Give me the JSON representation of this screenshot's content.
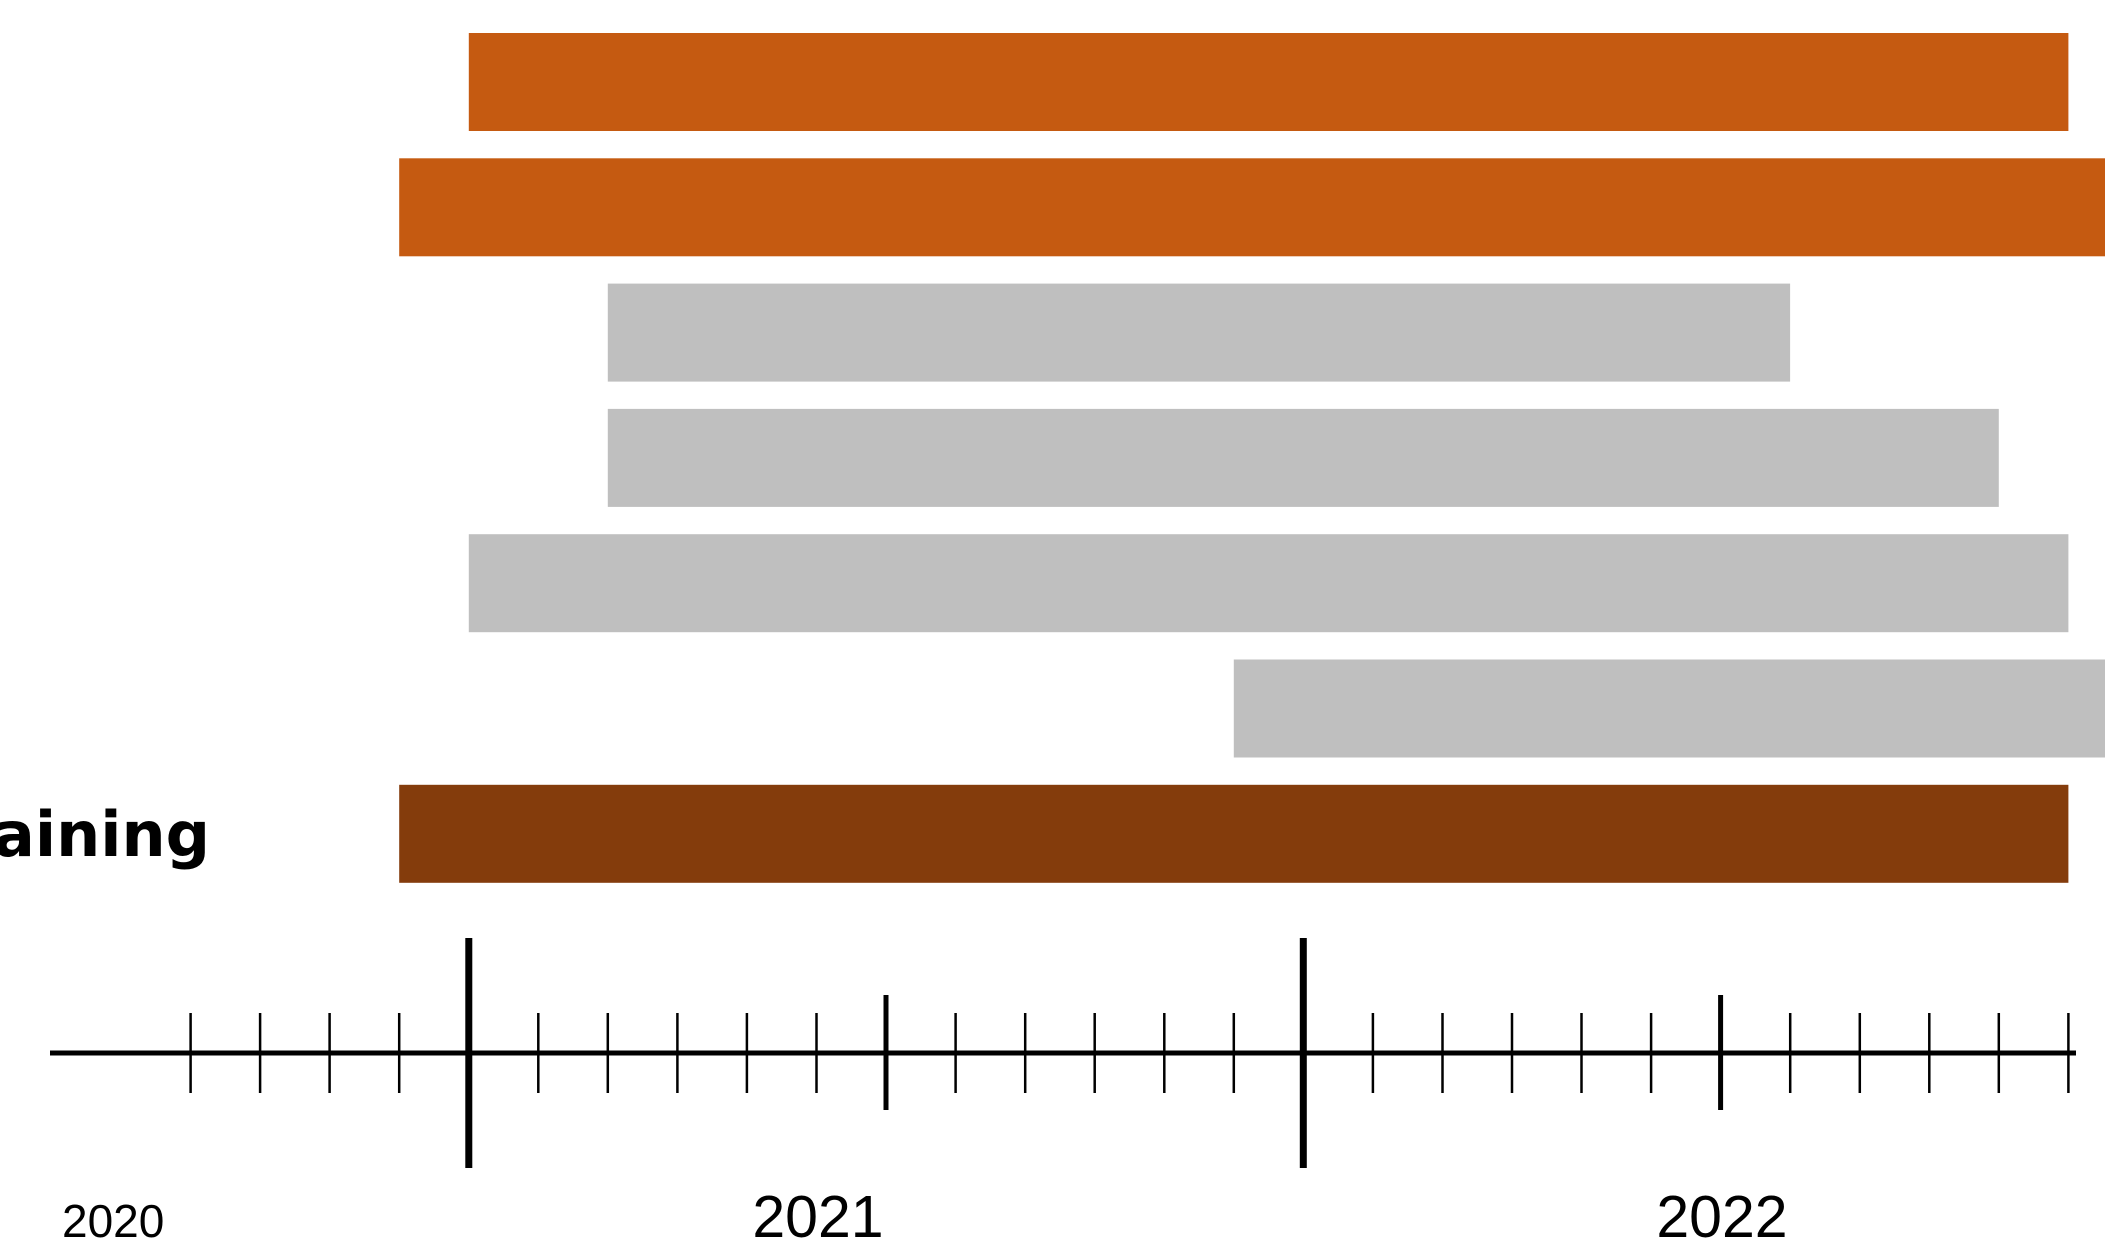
{
  "chart_data": {
    "type": "gantt",
    "colors": {
      "highlight": "#C55A11",
      "neutral": "#BFBFBF",
      "training": "#843C0C",
      "axis": "#000000"
    },
    "row_labels": [
      "",
      "",
      "",
      "",
      "",
      "",
      "raining"
    ],
    "tasks": [
      {
        "label": "",
        "start": "2020-07-01",
        "end": "2022-06-01",
        "color": "highlight"
      },
      {
        "label": "",
        "start": "2020-06-01",
        "end": "2022-07-01",
        "color": "highlight"
      },
      {
        "label": "",
        "start": "2020-09-01",
        "end": "2022-02-01",
        "color": "neutral"
      },
      {
        "label": "",
        "start": "2020-09-01",
        "end": "2022-05-01",
        "color": "neutral"
      },
      {
        "label": "",
        "start": "2020-07-01",
        "end": "2022-06-01",
        "color": "neutral"
      },
      {
        "label": "",
        "start": "2021-06-01",
        "end": "2022-07-01",
        "color": "neutral"
      },
      {
        "label": "raining",
        "start": "2020-06-01",
        "end": "2022-06-01",
        "color": "training"
      }
    ],
    "x_axis": {
      "range": [
        "2020-02-01",
        "2022-07-01"
      ],
      "major_ticks": [
        "2020-07-01",
        "2021-07-01",
        "2022-07-01"
      ],
      "mid_ticks": [
        "2021-01-01",
        "2022-01-01"
      ],
      "minor_tick_interval": "1 month",
      "year_labels": [
        "2020",
        "2021",
        "2022"
      ]
    }
  }
}
